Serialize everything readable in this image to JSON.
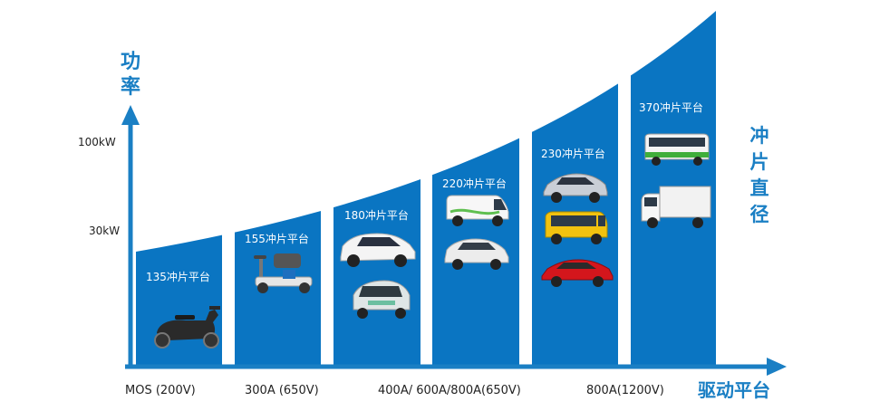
{
  "y_axis": {
    "title": "功率",
    "ticks": [
      "100kW",
      "30kW"
    ]
  },
  "x_axis": {
    "title": "驱动平台",
    "labels": [
      "MOS (200V)",
      "300A (650V)",
      "400A/ 600A/800A(650V)",
      "800A(1200V)"
    ]
  },
  "side_title": "冲片直径",
  "platforms": [
    {
      "label": "135冲片平台",
      "vehicles": [
        {
          "icon": "electric-scooter-icon"
        }
      ]
    },
    {
      "label": "155冲片平台",
      "vehicles": [
        {
          "icon": "mobility-scooter-icon"
        }
      ]
    },
    {
      "label": "180冲片平台",
      "vehicles": [
        {
          "icon": "white-minicar-icon"
        },
        {
          "icon": "microcar-icon"
        }
      ]
    },
    {
      "label": "220冲片平台",
      "vehicles": [
        {
          "icon": "delivery-van-icon"
        },
        {
          "icon": "small-hatchback-icon"
        }
      ]
    },
    {
      "label": "230冲片平台",
      "vehicles": [
        {
          "icon": "silver-sedan-icon"
        },
        {
          "icon": "yellow-minibus-icon"
        },
        {
          "icon": "red-sedan-icon"
        }
      ]
    },
    {
      "label": "370冲片平台",
      "vehicles": [
        {
          "icon": "green-city-bus-icon"
        },
        {
          "icon": "box-truck-icon"
        }
      ]
    }
  ],
  "colors": {
    "bar": "#0a75c2",
    "accent": "#1a7fc4",
    "axis": "#1a7fc4"
  }
}
